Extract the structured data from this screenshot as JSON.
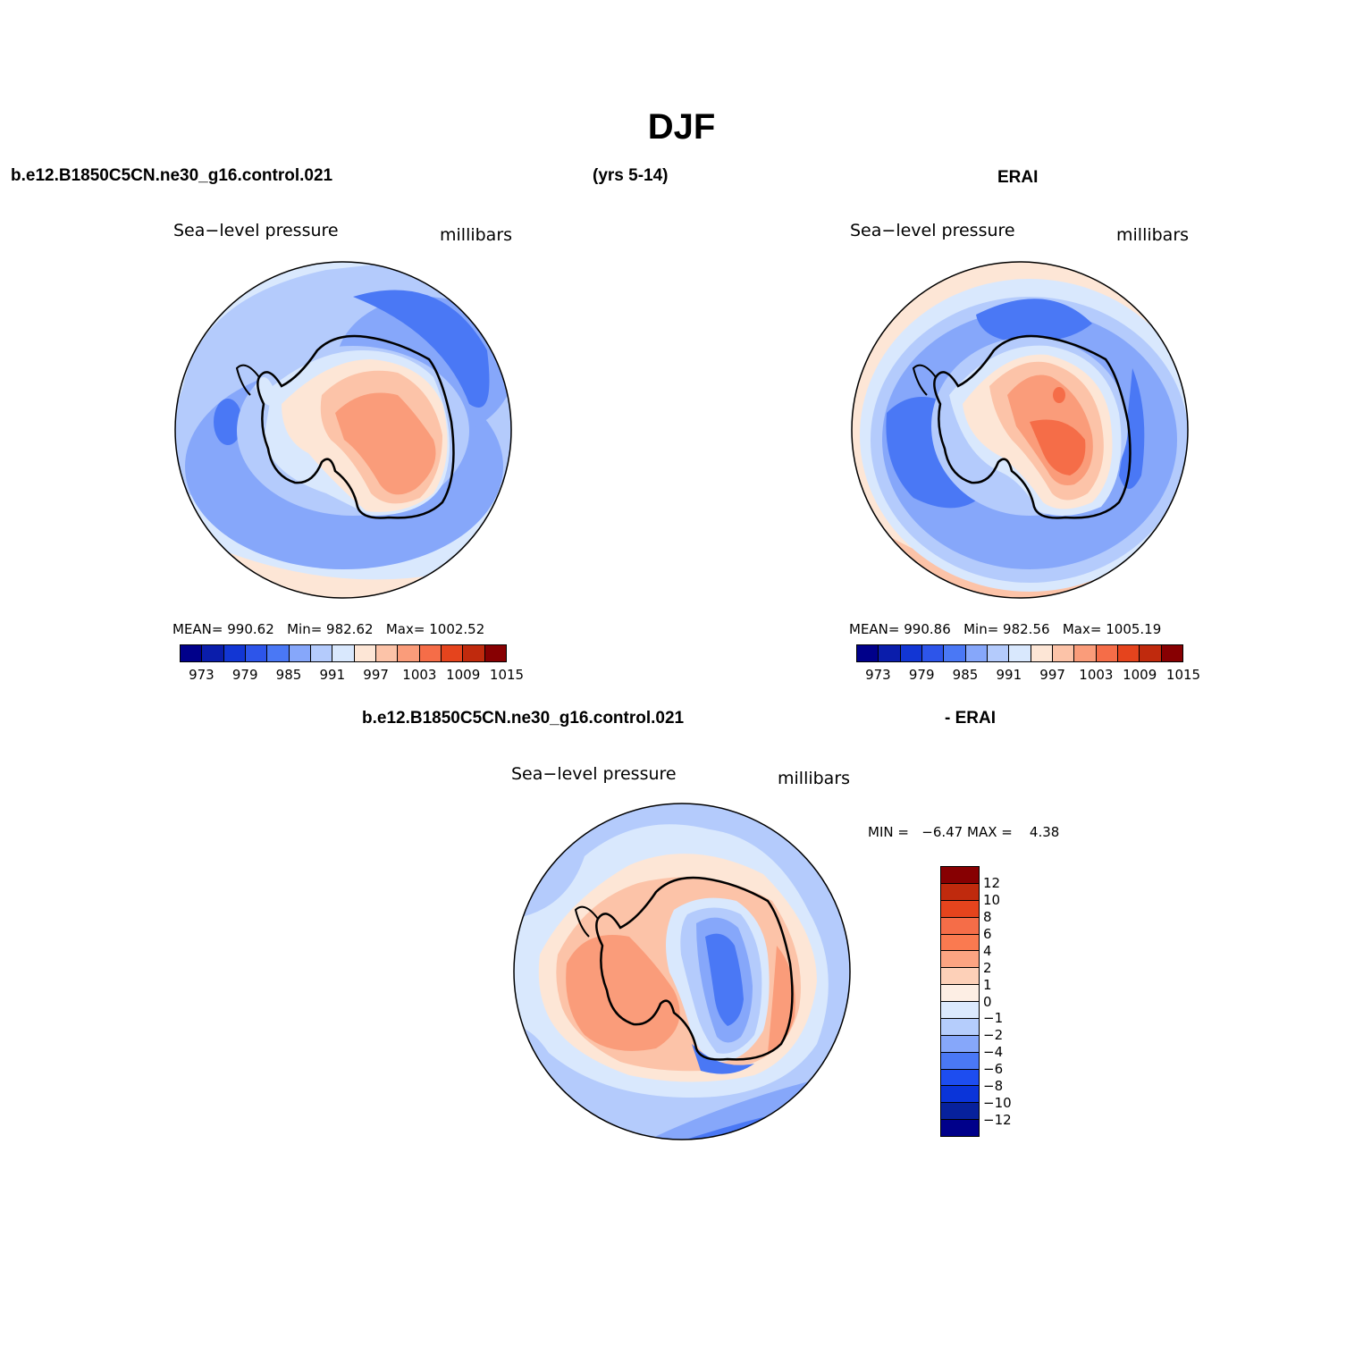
{
  "title": "DJF",
  "headers": {
    "case_name": "b.e12.B1850C5CN.ne30_g16.control.021",
    "years": "(yrs 5-14)",
    "obs_name": "ERAI",
    "diff_case": "b.e12.B1850C5CN.ne30_g16.control.021",
    "diff_obs": "- ERAI"
  },
  "panels": [
    {
      "id": "model",
      "variable": "Sea−level pressure",
      "units": "millibars",
      "stats": {
        "mean_label": "MEAN=",
        "mean": "990.62",
        "min_label": "Min=",
        "min": "982.62",
        "max_label": "Max=",
        "max": "1002.52"
      }
    },
    {
      "id": "obs",
      "variable": "Sea−level pressure",
      "units": "millibars",
      "stats": {
        "mean_label": "MEAN=",
        "mean": "990.86",
        "min_label": "Min=",
        "min": "982.56",
        "max_label": "Max=",
        "max": "1005.19"
      }
    },
    {
      "id": "diff",
      "variable": "Sea−level pressure",
      "units": "millibars",
      "stats": {
        "min_label": "MIN =",
        "min": "−6.47",
        "max_label": "MAX =",
        "max": "4.38"
      }
    }
  ],
  "colorbars": {
    "abs": {
      "colors": [
        "#00008a",
        "#0a1dab",
        "#1236d4",
        "#2d55ea",
        "#4a78f5",
        "#86a7fa",
        "#b4cbfc",
        "#d9e8fd",
        "#fde6d6",
        "#fcc3a8",
        "#fa9c7a",
        "#f56d48",
        "#e5441d",
        "#c02a0d",
        "#870002"
      ],
      "ticks": [
        "973",
        "979",
        "985",
        "991",
        "997",
        "1003",
        "1009",
        "1015"
      ]
    },
    "diff": {
      "colors_top_to_bottom": [
        "#870002",
        "#c02a0d",
        "#e5441d",
        "#f56d48",
        "#fa7a50",
        "#fca482",
        "#fdd0b8",
        "#fdeee4",
        "#dbe9fd",
        "#b5cdfc",
        "#86a7fa",
        "#4a78f5",
        "#1d4df0",
        "#0a34d9",
        "#07219c",
        "#00008a"
      ],
      "ticks": [
        "12",
        "10",
        "8",
        "6",
        "4",
        "2",
        "1",
        "0",
        "−1",
        "−2",
        "−4",
        "−6",
        "−8",
        "−10",
        "−12"
      ]
    }
  },
  "map_colors": {
    "ocean_light": "#d9e8fd",
    "ocean_mid": "#b4cbfc",
    "ocean_deep": "#86a7fa",
    "ocean_low": "#4a78f5",
    "warm_pale": "#fde6d6",
    "warm_light": "#fcc3a8",
    "warm_mid": "#fa9c7a",
    "warm_strong": "#f56d48"
  }
}
